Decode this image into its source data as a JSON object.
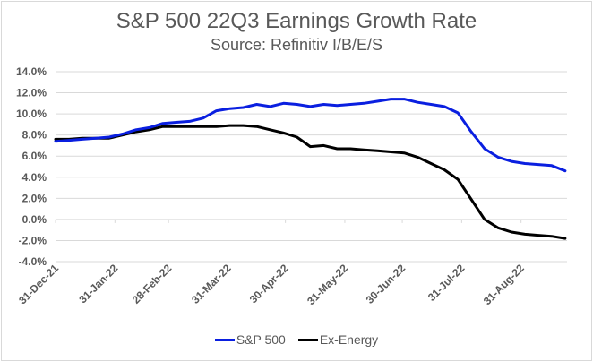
{
  "chart_data": {
    "type": "line",
    "title": "S&P 500 22Q3 Earnings Growth Rate",
    "subtitle": "Source: Refinitiv I/B/E/S",
    "xlabel": "",
    "ylabel": "",
    "ylim": [
      -4.0,
      14.0
    ],
    "yticks": [
      "14.0%",
      "12.0%",
      "10.0%",
      "8.0%",
      "6.0%",
      "4.0%",
      "2.0%",
      "0.0%",
      "-2.0%",
      "-4.0%"
    ],
    "ytick_values": [
      14,
      12,
      10,
      8,
      6,
      4,
      2,
      0,
      -2,
      -4
    ],
    "xtick_labels": [
      "31-Dec-21",
      "31-Jan-22",
      "28-Feb-22",
      "31-Mar-22",
      "30-Apr-22",
      "31-May-22",
      "30-Jun-22",
      "31-Jul-22",
      "31-Aug-22"
    ],
    "xtick_days": [
      0,
      31,
      59,
      90,
      120,
      151,
      181,
      212,
      243
    ],
    "x_range_days": [
      0,
      267
    ],
    "grid": true,
    "legend_position": "bottom",
    "x_days": [
      0,
      7,
      14,
      21,
      28,
      35,
      42,
      49,
      56,
      63,
      70,
      77,
      84,
      91,
      98,
      105,
      112,
      119,
      126,
      133,
      140,
      147,
      154,
      161,
      168,
      175,
      182,
      189,
      196,
      203,
      210,
      217,
      224,
      231,
      238,
      245,
      252,
      259,
      266
    ],
    "series": [
      {
        "name": "S&P 500",
        "color": "#0a1fe0",
        "values": [
          7.4,
          7.5,
          7.6,
          7.7,
          7.8,
          8.1,
          8.5,
          8.7,
          9.1,
          9.2,
          9.3,
          9.6,
          10.3,
          10.5,
          10.6,
          10.9,
          10.7,
          11.0,
          10.9,
          10.7,
          10.9,
          10.8,
          10.9,
          11.0,
          11.2,
          11.4,
          11.4,
          11.1,
          10.9,
          10.7,
          10.1,
          8.3,
          6.7,
          5.9,
          5.5,
          5.3,
          5.2,
          5.1,
          4.6
        ]
      },
      {
        "name": "Ex-Energy",
        "color": "#000000",
        "values": [
          7.6,
          7.6,
          7.7,
          7.7,
          7.7,
          8.0,
          8.3,
          8.5,
          8.8,
          8.8,
          8.8,
          8.8,
          8.8,
          8.9,
          8.9,
          8.8,
          8.5,
          8.2,
          7.8,
          6.9,
          7.0,
          6.7,
          6.7,
          6.6,
          6.5,
          6.4,
          6.3,
          5.9,
          5.3,
          4.7,
          3.8,
          1.9,
          0.0,
          -0.8,
          -1.2,
          -1.4,
          -1.5,
          -1.6,
          -1.8
        ]
      }
    ]
  },
  "colors": {
    "gridline": "#d9d9d9",
    "axis_text": "#595959"
  }
}
